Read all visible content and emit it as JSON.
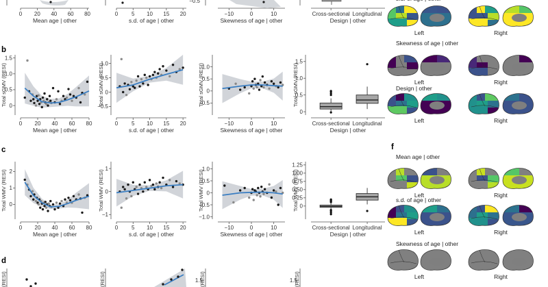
{
  "chart_data": {
    "type": "scatter",
    "panel_labels": [
      "b",
      "c",
      "d",
      "f"
    ],
    "top_strip": {
      "xlabels": [
        "Mean age | other",
        "s.d. of age | other",
        "Skewness of age | other",
        "Design | other"
      ],
      "xticks": [
        [
          "0",
          "20",
          "40",
          "60",
          "80"
        ],
        [
          "0",
          "5",
          "10",
          "15",
          "20"
        ],
        [
          "−10",
          "0",
          "10"
        ],
        [
          "Cross-sectional",
          "Longitudinal"
        ]
      ],
      "yticks": [
        "−0.5"
      ]
    },
    "row_b": {
      "ylabel": "Total sGMV (RESI)",
      "plots": [
        {
          "predictor": "Mean age | other",
          "xlim": [
            0,
            80
          ],
          "ylim": [
            -0.3,
            1.6
          ],
          "xticks": [
            "0",
            "20",
            "40",
            "60",
            "80"
          ],
          "yticks": [
            "0",
            "0.5",
            "1.0",
            "1.5"
          ],
          "points_x": [
            5,
            8,
            10,
            12,
            14,
            15,
            16,
            18,
            19,
            20,
            21,
            22,
            23,
            24,
            25,
            26,
            27,
            28,
            29,
            30,
            31,
            32,
            33,
            34,
            35,
            36,
            38,
            40,
            42,
            44,
            46,
            48,
            50,
            52,
            54,
            56,
            58,
            60,
            62,
            65,
            68,
            70,
            72,
            75,
            78
          ],
          "points_y": [
            0.25,
            1.42,
            0.45,
            0.15,
            0.35,
            0.2,
            0.08,
            0.0,
            0.3,
            0.15,
            0.32,
            0.05,
            0.2,
            0.1,
            -0.05,
            0.25,
            0.15,
            0.38,
            0.1,
            0.05,
            0.2,
            0.0,
            0.12,
            0.3,
            0.15,
            0.08,
            0.55,
            0.1,
            0.2,
            0.45,
            0.05,
            0.15,
            0.3,
            0.2,
            0.25,
            0.52,
            0.35,
            0.15,
            0.3,
            0.25,
            0.55,
            0.1,
            0.4,
            0.35,
            0.75
          ],
          "fit_x": [
            5,
            15,
            25,
            35,
            45,
            55,
            65,
            80
          ],
          "fit_y": [
            0.55,
            0.3,
            0.12,
            0.08,
            0.1,
            0.18,
            0.28,
            0.46
          ]
        },
        {
          "predictor": "s.d. of age | other",
          "xlim": [
            0,
            21
          ],
          "ylim": [
            -0.8,
            1.3
          ],
          "xticks": [
            "0",
            "5",
            "10",
            "15",
            "20"
          ],
          "yticks": [
            "−0.5",
            "0",
            "0.5",
            "1.0"
          ],
          "points_x": [
            1,
            1.5,
            2,
            2.5,
            3,
            3.5,
            4,
            4.5,
            5,
            5.5,
            6,
            6.5,
            7,
            7.5,
            8,
            8.5,
            9,
            9.5,
            10,
            10.5,
            11,
            11.5,
            12,
            12.5,
            13,
            13.5,
            14,
            15,
            16,
            17,
            18,
            19,
            20
          ],
          "points_y": [
            0.2,
            1.15,
            0.0,
            0.3,
            -0.1,
            0.25,
            0.1,
            0.35,
            0.2,
            0.15,
            0.4,
            0.55,
            0.2,
            0.45,
            0.3,
            0.6,
            0.5,
            0.25,
            0.55,
            0.45,
            0.6,
            0.7,
            0.5,
            0.65,
            0.8,
            0.6,
            0.9,
            0.75,
            0.55,
            0.95,
            0.7,
            0.8,
            0.85
          ],
          "fit_x": [
            0,
            5,
            10,
            15,
            20
          ],
          "fit_y": [
            0.15,
            0.25,
            0.45,
            0.62,
            0.78
          ]
        },
        {
          "predictor": "Skewness of age | other",
          "xlim": [
            -15,
            15
          ],
          "ylim": [
            -1.0,
            1.5
          ],
          "xticks": [
            "−10",
            "0",
            "10"
          ],
          "yticks": [
            "−0.5",
            "0",
            "0.5",
            "1.0"
          ],
          "points_x": [
            -10,
            -7,
            -5,
            -3,
            -1,
            0,
            0.5,
            1,
            1.5,
            2,
            2.5,
            3,
            3.5,
            4,
            4.5,
            5,
            5.5,
            6,
            7,
            8,
            9,
            10,
            11,
            12,
            13,
            14
          ],
          "points_y": [
            0.1,
            0.3,
            0.05,
            0.15,
            -0.1,
            0.2,
            0.4,
            0.1,
            0.5,
            0.25,
            0.15,
            0.3,
            0.05,
            0.45,
            0.2,
            0.6,
            0.15,
            0.35,
            0.25,
            0.1,
            0.4,
            0.3,
            0.2,
            0.15,
            0.35,
            0.25
          ],
          "fit_x": [
            -13,
            -5,
            0,
            5,
            10,
            14
          ],
          "fit_y": [
            0.1,
            0.2,
            0.25,
            0.25,
            0.22,
            0.2
          ]
        },
        {
          "predictor": "Design | other",
          "type": "box",
          "ylim": [
            -0.1,
            1.7
          ],
          "categories": [
            "Cross-sectional",
            "Longitudinal"
          ],
          "yticks": [
            "0",
            "0.5",
            "1.0",
            "1.5"
          ],
          "boxes": [
            {
              "min": 0.0,
              "q1": 0.08,
              "median": 0.15,
              "q3": 0.26,
              "max": 0.4,
              "outliers": [
                0.5,
                0.55,
                0.6,
                0.62,
                -0.02
              ]
            },
            {
              "min": 0.08,
              "q1": 0.25,
              "median": 0.35,
              "q3": 0.5,
              "max": 0.75,
              "outliers": [
                1.42
              ]
            }
          ]
        }
      ]
    },
    "row_c": {
      "ylabel": "Total WMV (RESI)",
      "plots": [
        {
          "predictor": "Mean age | other",
          "xlim": [
            0,
            80
          ],
          "ylim": [
            -0.9,
            2.6
          ],
          "xticks": [
            "0",
            "20",
            "40",
            "60",
            "80"
          ],
          "yticks": [
            "0",
            "1",
            "2"
          ],
          "points_x": [
            5,
            8,
            10,
            12,
            14,
            15,
            16,
            18,
            19,
            20,
            21,
            22,
            23,
            24,
            25,
            26,
            27,
            28,
            29,
            30,
            31,
            32,
            33,
            34,
            35,
            36,
            38,
            40,
            42,
            44,
            46,
            48,
            50,
            52,
            54,
            56,
            58,
            60,
            62,
            65,
            68,
            70,
            72,
            75,
            78
          ],
          "points_y": [
            1.5,
            1.2,
            0.9,
            0.5,
            0.8,
            0.3,
            0.6,
            0.2,
            0.4,
            0.1,
            0.0,
            0.3,
            -0.2,
            0.2,
            0.05,
            -0.3,
            0.1,
            -0.1,
            0.15,
            -0.2,
            0.0,
            -0.4,
            0.05,
            -0.1,
            0.2,
            -0.15,
            0.0,
            -0.3,
            0.1,
            -0.2,
            0.05,
            0.2,
            -0.1,
            0.3,
            0.1,
            0.4,
            0.25,
            0.1,
            0.5,
            0.3,
            0.6,
            0.35,
            -0.5,
            0.4,
            0.55
          ],
          "fit_x": [
            5,
            15,
            25,
            35,
            45,
            55,
            65,
            80
          ],
          "fit_y": [
            1.35,
            0.55,
            0.1,
            -0.15,
            -0.12,
            0.05,
            0.25,
            0.5
          ]
        },
        {
          "predictor": "s.d. of age | other",
          "xlim": [
            0,
            21
          ],
          "ylim": [
            -1.2,
            1.3
          ],
          "xticks": [
            "0",
            "5",
            "10",
            "15",
            "20"
          ],
          "yticks": [
            "−1",
            "0",
            "1"
          ],
          "points_x": [
            1,
            1.5,
            2,
            2.5,
            3,
            3.5,
            4,
            4.5,
            5,
            5.5,
            6,
            6.5,
            7,
            7.5,
            8,
            8.5,
            9,
            9.5,
            10,
            10.5,
            11,
            11.5,
            12,
            12.5,
            13,
            13.5,
            14,
            15,
            16,
            17,
            18,
            19,
            20
          ],
          "points_y": [
            0.0,
            -0.7,
            0.2,
            0.1,
            -0.3,
            0.3,
            0.0,
            -0.2,
            0.4,
            0.1,
            0.2,
            -0.1,
            0.3,
            0.15,
            0.0,
            0.4,
            0.2,
            0.1,
            0.5,
            0.25,
            0.3,
            0.1,
            0.35,
            0.2,
            0.4,
            0.15,
            0.6,
            0.3,
            0.5,
            0.2,
            0.45,
            0.35,
            0.3
          ],
          "fit_x": [
            0,
            5,
            10,
            15,
            20
          ],
          "fit_y": [
            -0.05,
            0.05,
            0.15,
            0.25,
            0.3
          ]
        },
        {
          "predictor": "Skewness of age | other",
          "xlim": [
            -15,
            15
          ],
          "ylim": [
            -1.1,
            1.3
          ],
          "xticks": [
            "−10",
            "0",
            "10"
          ],
          "yticks": [
            "−1.0",
            "−0.5",
            "0",
            "0.5",
            "1.0"
          ],
          "points_x": [
            -12,
            -8,
            -5,
            -3,
            -1,
            0,
            0.5,
            1,
            1.5,
            2,
            2.5,
            3,
            3.5,
            4,
            4.5,
            5,
            5.5,
            6,
            7,
            8,
            9,
            10,
            11,
            12,
            13,
            14
          ],
          "points_y": [
            0.3,
            -0.4,
            0.1,
            0.2,
            -0.2,
            0.0,
            0.15,
            -0.3,
            0.1,
            0.05,
            -0.1,
            0.2,
            0.0,
            -0.15,
            0.25,
            0.05,
            -0.05,
            0.15,
            0.0,
            0.35,
            -0.2,
            0.1,
            0.05,
            -0.5,
            0.2,
            0.0
          ],
          "fit_x": [
            -13,
            -5,
            0,
            5,
            10,
            14
          ],
          "fit_y": [
            -0.1,
            0.0,
            0.02,
            0.03,
            0.0,
            -0.05
          ]
        },
        {
          "predictor": "Design | other",
          "type": "box",
          "ylim": [
            -0.4,
            1.35
          ],
          "categories": [
            "Cross-sectional",
            "Longitudinal"
          ],
          "yticks": [
            "0",
            "0.25",
            "0.50",
            "0.75",
            "1.00",
            "1.25"
          ],
          "boxes": [
            {
              "min": -0.1,
              "q1": -0.04,
              "median": -0.01,
              "q3": 0.03,
              "max": 0.1,
              "outliers": [
                0.12,
                0.15,
                0.18,
                0.2,
                -0.12,
                -0.15,
                -0.2,
                -0.25
              ]
            },
            {
              "min": 0.05,
              "q1": 0.18,
              "median": 0.28,
              "q3": 0.38,
              "max": 0.55,
              "outliers": [
                -0.15
              ]
            }
          ]
        }
      ]
    },
    "row_d": {
      "ylabel": "(RESI)",
      "ytick_top": "1.5"
    },
    "right_panel": {
      "top_partial_title": "s.d. of age | other",
      "groups": [
        {
          "title": "",
          "fill": [
            "#55c667",
            "#2d708e",
            "#fde725",
            "#b8de29",
            "#39568c",
            "#1f9e89",
            "#fde725",
            "#3b528b"
          ]
        },
        {
          "title": "Skewness of age | other",
          "fill": [
            "#440154",
            "#808080",
            "#3b528b",
            "#808080",
            "#440154",
            "#808080",
            "#808080",
            "#482878"
          ]
        },
        {
          "title": "Design | other",
          "fill": [
            "#3b528b",
            "#440154",
            "#21918c",
            "#2c728e",
            "#1f9e89",
            "#5ec962",
            "#3b528b",
            "#21918c"
          ]
        },
        {
          "title": "Mean age | other",
          "fill": [
            "#808080",
            "#b8de29",
            "#808080",
            "#55c667",
            "#3b528b",
            "#808080",
            "#c8e020",
            "#808080"
          ]
        },
        {
          "title": "s.d. of age | other",
          "fill": [
            "#440154",
            "#3b528b",
            "#21918c",
            "#2c728e",
            "#1f9e89",
            "#fde725",
            "#39568c",
            "#2d708e"
          ]
        },
        {
          "title": "Skewness of age | other",
          "fill": [
            "#808080",
            "#808080",
            "#808080",
            "#808080",
            "#808080",
            "#808080",
            "#808080",
            "#808080"
          ]
        }
      ],
      "hemisphere_labels": [
        "Left",
        "Right"
      ]
    },
    "colors": {
      "fit": "#3a7ec2",
      "ci_band": "#c9cdd2",
      "point_dark": "#1a1a1a",
      "point_grey": "#8a8a8a",
      "box_fill": "#a6a6a6"
    }
  }
}
